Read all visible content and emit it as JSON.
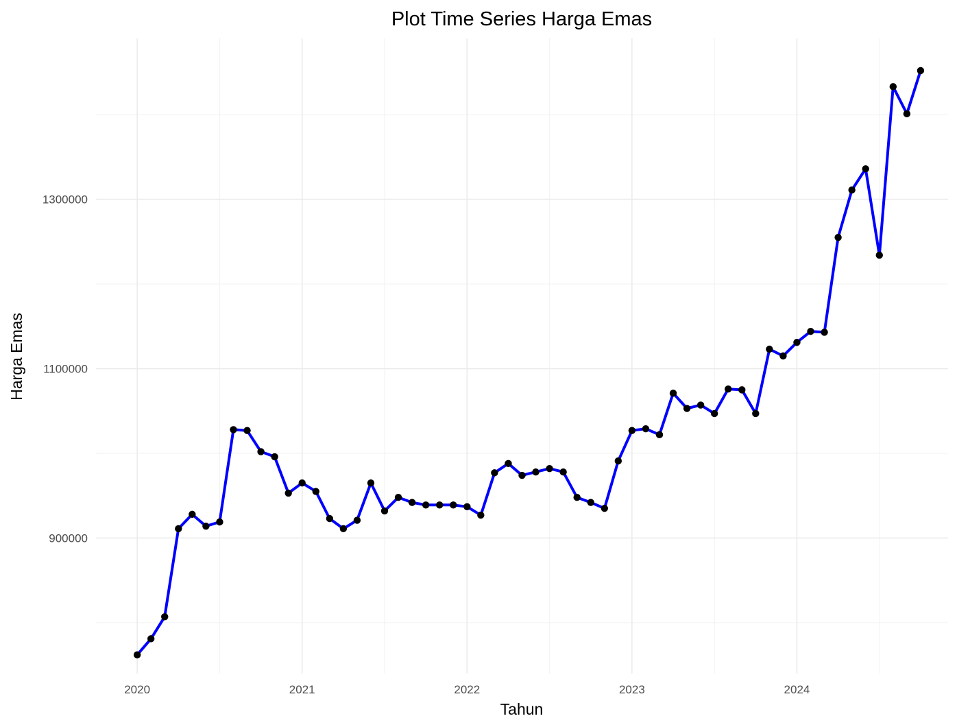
{
  "chart_data": {
    "type": "line",
    "title": "Plot Time Series Harga Emas",
    "xlabel": "Tahun",
    "ylabel": "Harga Emas",
    "x_ticks": [
      "2020",
      "2021",
      "2022",
      "2023",
      "2024"
    ],
    "y_ticks": [
      "900000",
      "1100000",
      "1300000"
    ],
    "xlim": [
      "2019-10",
      "2024-12"
    ],
    "ylim": [
      740000,
      1490000
    ],
    "grid": true,
    "legend": "none",
    "colors": {
      "line": "#0000ff",
      "point": "#000000",
      "grid": "#ebebeb"
    },
    "series": [
      {
        "x": [
          "2020-01",
          "2020-02",
          "2020-03",
          "2020-04",
          "2020-05",
          "2020-06",
          "2020-07",
          "2020-08",
          "2020-09",
          "2020-10",
          "2020-11",
          "2020-12",
          "2021-01",
          "2021-02",
          "2021-03",
          "2021-04",
          "2021-05",
          "2021-06",
          "2021-07",
          "2021-08",
          "2021-09",
          "2021-10",
          "2021-11",
          "2021-12",
          "2022-01",
          "2022-02",
          "2022-03",
          "2022-04",
          "2022-05",
          "2022-06",
          "2022-07",
          "2022-08",
          "2022-09",
          "2022-10",
          "2022-11",
          "2022-12",
          "2023-01",
          "2023-02",
          "2023-03",
          "2023-04",
          "2023-05",
          "2023-06",
          "2023-07",
          "2023-08",
          "2023-09",
          "2023-10",
          "2023-11",
          "2023-12",
          "2024-01",
          "2024-02",
          "2024-03",
          "2024-04",
          "2024-05",
          "2024-06",
          "2024-07",
          "2024-08",
          "2024-09",
          "2024-10"
        ],
        "values": [
          762000,
          781000,
          807000,
          911000,
          928000,
          914000,
          919000,
          1028000,
          1027000,
          1002000,
          996000,
          953000,
          965000,
          955000,
          923000,
          911000,
          921000,
          965000,
          932000,
          948000,
          942000,
          939000,
          939000,
          939000,
          937000,
          927000,
          977000,
          988000,
          974000,
          978000,
          982000,
          978000,
          948000,
          942000,
          935000,
          991000,
          1027000,
          1029000,
          1022000,
          1071000,
          1053000,
          1057000,
          1047000,
          1076000,
          1075000,
          1047000,
          1123000,
          1115000,
          1131000,
          1144000,
          1143000,
          1255000,
          1311000,
          1336000,
          1234000,
          1433000,
          1401000,
          1452000
        ]
      }
    ]
  }
}
